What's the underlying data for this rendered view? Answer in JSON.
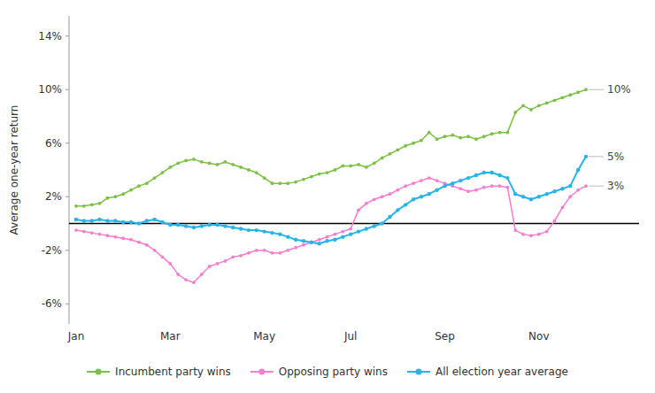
{
  "chart_data": {
    "type": "line",
    "y_label": "Average one-year return",
    "categories": [
      "Jan",
      null,
      null,
      null,
      null,
      null,
      null,
      null,
      null,
      null,
      null,
      null,
      "Mar",
      null,
      null,
      null,
      null,
      null,
      null,
      null,
      null,
      null,
      null,
      null,
      "May",
      null,
      null,
      null,
      null,
      null,
      null,
      null,
      null,
      null,
      null,
      "Jul",
      null,
      null,
      null,
      null,
      null,
      null,
      null,
      null,
      null,
      null,
      null,
      "Sep",
      null,
      null,
      null,
      null,
      null,
      null,
      null,
      null,
      null,
      null,
      null,
      "Nov",
      null,
      null,
      null,
      null,
      null,
      null
    ],
    "ylim": [
      -0.075,
      0.155
    ],
    "yticks": [
      {
        "value": -0.06,
        "label": "-6%"
      },
      {
        "value": -0.02,
        "label": "-2%"
      },
      {
        "value": 0.02,
        "label": "2%"
      },
      {
        "value": 0.06,
        "label": "6%"
      },
      {
        "value": 0.1,
        "label": "10%"
      },
      {
        "value": 0.14,
        "label": "14%"
      }
    ],
    "grid": false,
    "legend": "bottom",
    "series": [
      {
        "name": "Incumbent party wins",
        "color": "#7bc143",
        "marker": "circle",
        "values": [
          0.013,
          0.013,
          0.014,
          0.015,
          0.019,
          0.02,
          0.022,
          0.025,
          0.028,
          0.03,
          0.034,
          0.038,
          0.042,
          0.045,
          0.047,
          0.048,
          0.046,
          0.045,
          0.044,
          0.046,
          0.044,
          0.042,
          0.04,
          0.038,
          0.034,
          0.03,
          0.03,
          0.03,
          0.031,
          0.033,
          0.035,
          0.037,
          0.038,
          0.04,
          0.043,
          0.043,
          0.044,
          0.042,
          0.045,
          0.049,
          0.052,
          0.055,
          0.058,
          0.06,
          0.062,
          0.068,
          0.063,
          0.065,
          0.066,
          0.064,
          0.065,
          0.063,
          0.065,
          0.067,
          0.068,
          0.068,
          0.083,
          0.088,
          0.085,
          0.088,
          0.09,
          0.092,
          0.094,
          0.096,
          0.098,
          0.1
        ]
      },
      {
        "name": "Opposing party wins",
        "color": "#f57ece",
        "marker": "circle",
        "values": [
          -0.005,
          -0.006,
          -0.007,
          -0.008,
          -0.009,
          -0.01,
          -0.011,
          -0.012,
          -0.014,
          -0.016,
          -0.02,
          -0.025,
          -0.03,
          -0.038,
          -0.042,
          -0.044,
          -0.038,
          -0.032,
          -0.03,
          -0.028,
          -0.025,
          -0.024,
          -0.022,
          -0.02,
          -0.02,
          -0.022,
          -0.022,
          -0.02,
          -0.018,
          -0.016,
          -0.014,
          -0.012,
          -0.01,
          -0.008,
          -0.006,
          -0.004,
          0.01,
          0.015,
          0.018,
          0.02,
          0.022,
          0.025,
          0.028,
          0.03,
          0.032,
          0.034,
          0.032,
          0.03,
          0.028,
          0.026,
          0.024,
          0.025,
          0.027,
          0.028,
          0.028,
          0.027,
          -0.005,
          -0.008,
          -0.009,
          -0.008,
          -0.006,
          0.002,
          0.012,
          0.02,
          0.025,
          0.028
        ]
      },
      {
        "name": "All election year average",
        "color": "#28b4e8",
        "marker": "circle",
        "values": [
          0.003,
          0.002,
          0.002,
          0.003,
          0.002,
          0.002,
          0.001,
          0.001,
          0.0,
          0.002,
          0.003,
          0.001,
          -0.001,
          -0.001,
          -0.002,
          -0.003,
          -0.002,
          -0.001,
          -0.001,
          -0.002,
          -0.003,
          -0.004,
          -0.005,
          -0.005,
          -0.006,
          -0.007,
          -0.008,
          -0.01,
          -0.012,
          -0.013,
          -0.014,
          -0.015,
          -0.013,
          -0.012,
          -0.01,
          -0.008,
          -0.006,
          -0.004,
          -0.002,
          0.0,
          0.005,
          0.01,
          0.014,
          0.018,
          0.02,
          0.022,
          0.025,
          0.028,
          0.03,
          0.032,
          0.034,
          0.036,
          0.038,
          0.038,
          0.036,
          0.034,
          0.022,
          0.02,
          0.018,
          0.02,
          0.022,
          0.024,
          0.026,
          0.028,
          0.04,
          0.05
        ]
      }
    ],
    "annotations": [
      {
        "text": "10%",
        "value": 0.1
      },
      {
        "text": "5%",
        "value": 0.05
      },
      {
        "text": "3%",
        "value": 0.028
      }
    ]
  }
}
